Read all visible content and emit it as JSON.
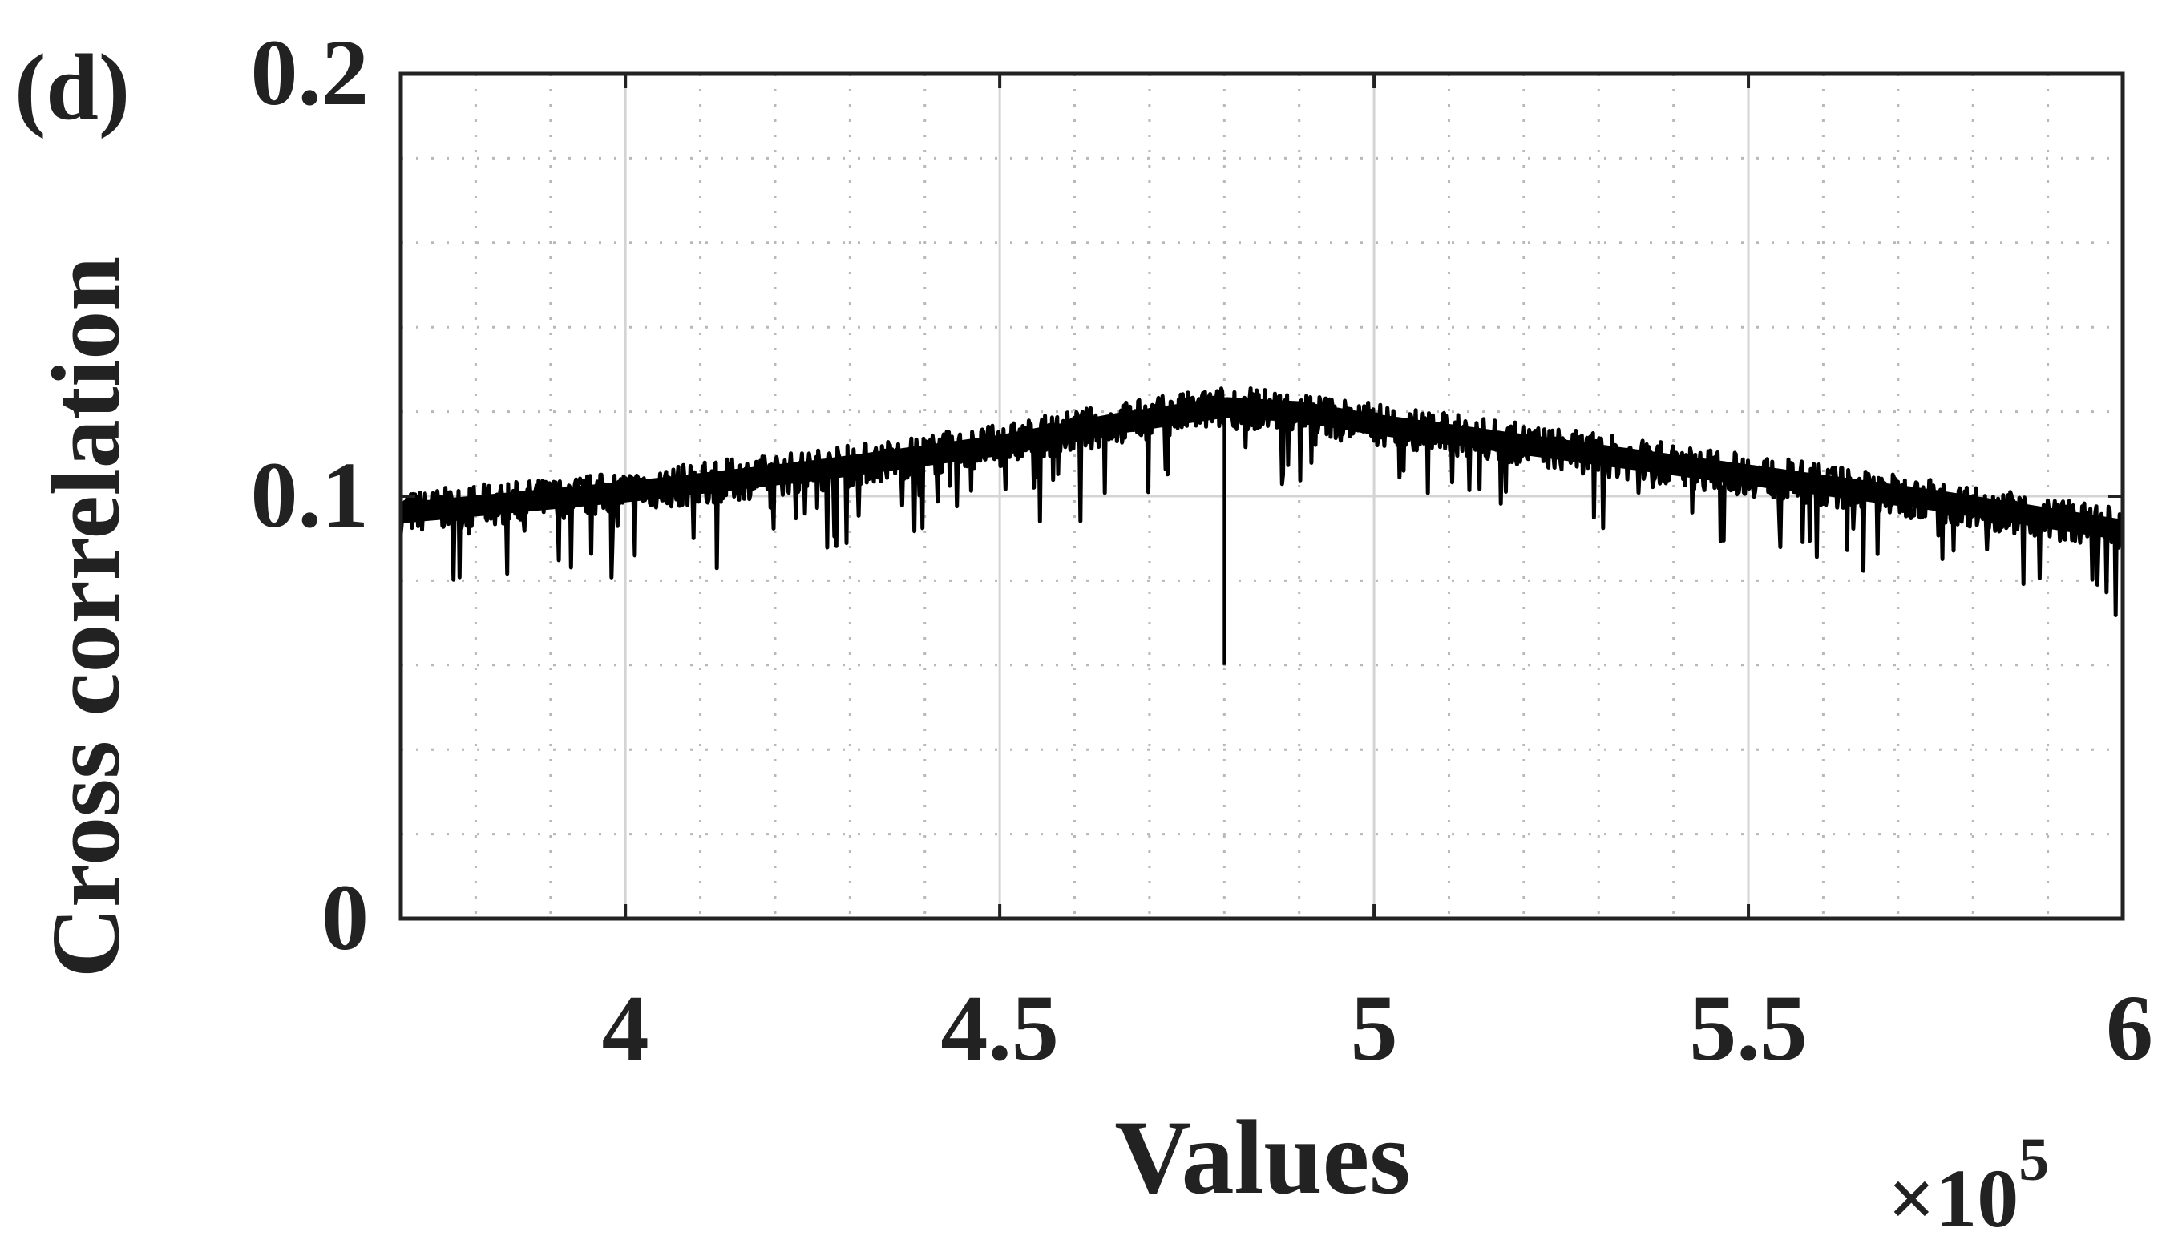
{
  "panel_label": "(d)",
  "chart_data": {
    "type": "line",
    "title": "",
    "xlabel": "Values",
    "ylabel": "Cross correlation",
    "x_exponent_label": "×10",
    "x_exponent_power": "5",
    "x_multiplier": 100000,
    "xlim": [
      370000,
      600000
    ],
    "ylim": [
      0,
      0.2
    ],
    "x_ticks": [
      400000,
      450000,
      500000,
      550000,
      600000
    ],
    "x_tick_labels": [
      "4",
      "4.5",
      "5",
      "5.5",
      "6"
    ],
    "y_ticks": [
      0,
      0.1,
      0.2
    ],
    "y_tick_labels": [
      "0",
      "0.1",
      "0.2"
    ],
    "grid": true,
    "minor_grid": true,
    "line_color": "#000000",
    "series": [
      {
        "x": [
          370000,
          400000,
          425000,
          450000,
          465000,
          480000,
          490000,
          500000,
          525000,
          550000,
          575000,
          600000
        ],
        "values": [
          0.096,
          0.101,
          0.106,
          0.112,
          0.117,
          0.121,
          0.12,
          0.117,
          0.111,
          0.105,
          0.099,
          0.092
        ],
        "noise_band": 0.005,
        "dip": {
          "x": 480000,
          "y": 0.06
        }
      }
    ]
  }
}
